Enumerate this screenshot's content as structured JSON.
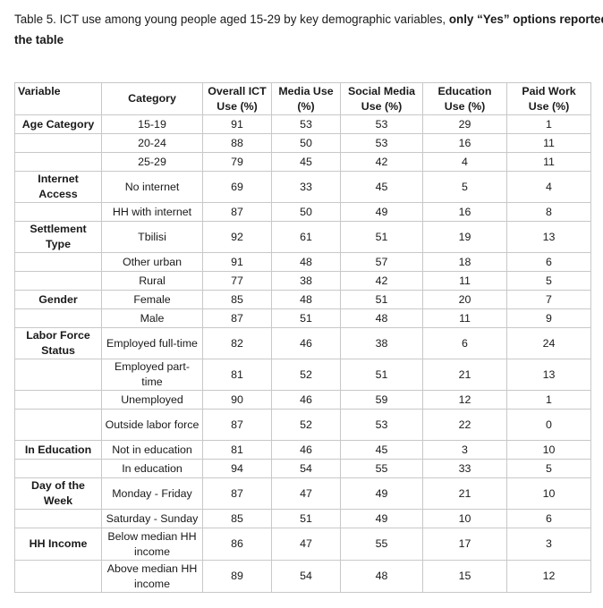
{
  "caption": {
    "line1_plain": "Table 5. ICT use among young people aged 15-29 by key demographic variables, ",
    "line1_bold": "only “Yes” options reported in",
    "line2_bold": "the table"
  },
  "headers": {
    "variable": "Variable",
    "category": "Category",
    "overall_l1": "Overall ICT",
    "overall_l2": "Use (%)",
    "media_l1": "Media Use",
    "media_l2": "(%)",
    "social_l1": "Social Media",
    "social_l2": "Use (%)",
    "education_l1": "Education",
    "education_l2": "Use (%)",
    "paid_l1": "Paid Work",
    "paid_l2": "Use (%)"
  },
  "rows": [
    {
      "variable": "Age Category",
      "category": "15-19",
      "overall": "91",
      "media": "53",
      "social": "53",
      "education": "29",
      "paid": "1"
    },
    {
      "variable": "",
      "category": "20-24",
      "overall": "88",
      "media": "50",
      "social": "53",
      "education": "16",
      "paid": "11"
    },
    {
      "variable": "",
      "category": "25-29",
      "overall": "79",
      "media": "45",
      "social": "42",
      "education": "4",
      "paid": "11"
    },
    {
      "variable": "Internet Access",
      "category": "No internet",
      "overall": "69",
      "media": "33",
      "social": "45",
      "education": "5",
      "paid": "4"
    },
    {
      "variable": "",
      "category": "HH with internet",
      "overall": "87",
      "media": "50",
      "social": "49",
      "education": "16",
      "paid": "8"
    },
    {
      "variable": "Settlement Type",
      "category": "Tbilisi",
      "overall": "92",
      "media": "61",
      "social": "51",
      "education": "19",
      "paid": "13"
    },
    {
      "variable": "",
      "category": "Other urban",
      "overall": "91",
      "media": "48",
      "social": "57",
      "education": "18",
      "paid": "6"
    },
    {
      "variable": "",
      "category": "Rural",
      "overall": "77",
      "media": "38",
      "social": "42",
      "education": "11",
      "paid": "5"
    },
    {
      "variable": "Gender",
      "category": "Female",
      "overall": "85",
      "media": "48",
      "social": "51",
      "education": "20",
      "paid": "7"
    },
    {
      "variable": "",
      "category": "Male",
      "overall": "87",
      "media": "51",
      "social": "48",
      "education": "11",
      "paid": "9"
    },
    {
      "variable": "Labor Force Status",
      "category": "Employed full-time",
      "overall": "82",
      "media": "46",
      "social": "38",
      "education": "6",
      "paid": "24"
    },
    {
      "variable": "",
      "category": "Employed part-time",
      "overall": "81",
      "media": "52",
      "social": "51",
      "education": "21",
      "paid": "13"
    },
    {
      "variable": "",
      "category": "Unemployed",
      "overall": "90",
      "media": "46",
      "social": "59",
      "education": "12",
      "paid": "1"
    },
    {
      "variable": "",
      "category": "Outside labor force",
      "overall": "87",
      "media": "52",
      "social": "53",
      "education": "22",
      "paid": "0"
    },
    {
      "variable": "In Education",
      "category": "Not in education",
      "overall": "81",
      "media": "46",
      "social": "45",
      "education": "3",
      "paid": "10"
    },
    {
      "variable": "",
      "category": "In education",
      "overall": "94",
      "media": "54",
      "social": "55",
      "education": "33",
      "paid": "5"
    },
    {
      "variable": "Day of the Week",
      "category": "Monday - Friday",
      "overall": "87",
      "media": "47",
      "social": "49",
      "education": "21",
      "paid": "10"
    },
    {
      "variable": "",
      "category": "Saturday - Sunday",
      "overall": "85",
      "media": "51",
      "social": "49",
      "education": "10",
      "paid": "6"
    },
    {
      "variable": "HH Income",
      "category": "Below median HH income",
      "overall": "86",
      "media": "47",
      "social": "55",
      "education": "17",
      "paid": "3"
    },
    {
      "variable": "",
      "category": "Above median HH income",
      "overall": "89",
      "media": "54",
      "social": "48",
      "education": "15",
      "paid": "12"
    }
  ]
}
